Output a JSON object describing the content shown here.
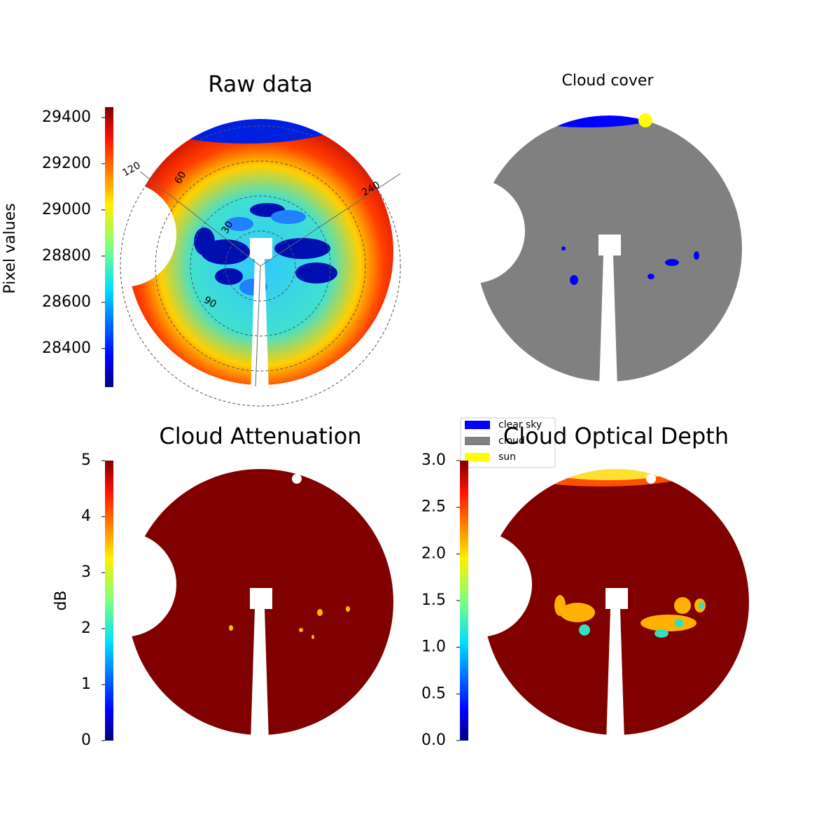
{
  "chart_data": [
    {
      "type": "raw-image",
      "title": "Raw data",
      "colorbar_label": "Pixel values",
      "cmap": "jet",
      "clim": [
        28233,
        29445
      ],
      "cticks": [
        28400,
        28600,
        28800,
        29000,
        29200,
        29400
      ],
      "polar_labels": [
        "120",
        "240",
        "60",
        "30",
        "90"
      ]
    },
    {
      "type": "class-image",
      "title": "Cloud cover",
      "legend": [
        {
          "name": "clear sky",
          "color": "#0000ff"
        },
        {
          "name": "cloud",
          "color": "#808080"
        },
        {
          "name": "sun",
          "color": "#ffff00"
        }
      ]
    },
    {
      "type": "attenuation-image",
      "title": "Cloud Attenuation",
      "colorbar_label": "dB",
      "cmap": "jet",
      "clim": [
        0,
        5
      ],
      "cticks": [
        0,
        1,
        2,
        3,
        4,
        5
      ]
    },
    {
      "type": "depth-image",
      "title": "Cloud Optical Depth",
      "cmap": "jet",
      "clim": [
        0,
        3
      ],
      "cticks": [
        {
          "value": 0,
          "label": "0.0"
        },
        {
          "value": 0.5,
          "label": "0.5"
        },
        {
          "value": 1,
          "label": "1.0"
        },
        {
          "value": 1.5,
          "label": "1.5"
        },
        {
          "value": 2,
          "label": "2.0"
        },
        {
          "value": 2.5,
          "label": "2.5"
        },
        {
          "value": 3,
          "label": "3.0"
        }
      ]
    }
  ]
}
